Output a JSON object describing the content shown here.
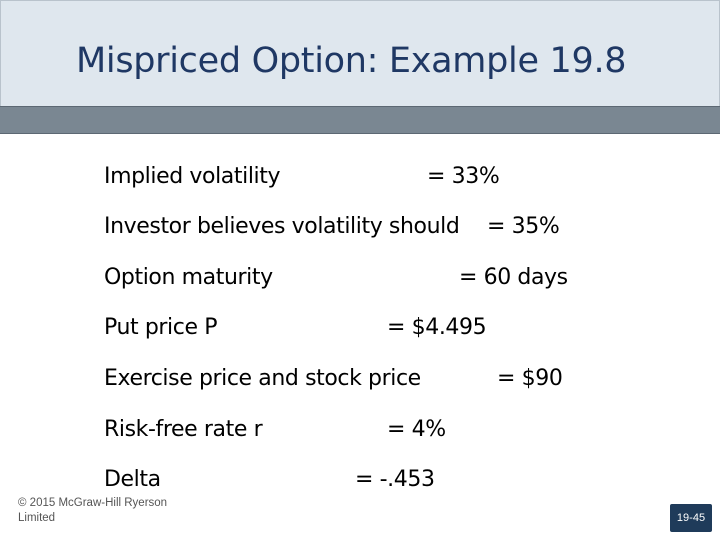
{
  "slide": {
    "title": "Mispriced Option: Example 19.8",
    "rows": [
      {
        "label": "Implied volatility",
        "value": "= 33%"
      },
      {
        "label": "Investor believes volatility should",
        "value": "= 35%"
      },
      {
        "label": "Option maturity",
        "value": "= 60 days"
      },
      {
        "label": "Put price P",
        "value": "=  $4.495"
      },
      {
        "label": "Exercise price and stock price",
        "value": "=  $90"
      },
      {
        "label": "Risk-free rate r",
        "value": "=  4%"
      },
      {
        "label": "Delta",
        "value": "= -.453"
      }
    ],
    "footer": {
      "copyright": "© 2015 McGraw-Hill Ryerson Limited",
      "slide_number": "19-45"
    }
  }
}
